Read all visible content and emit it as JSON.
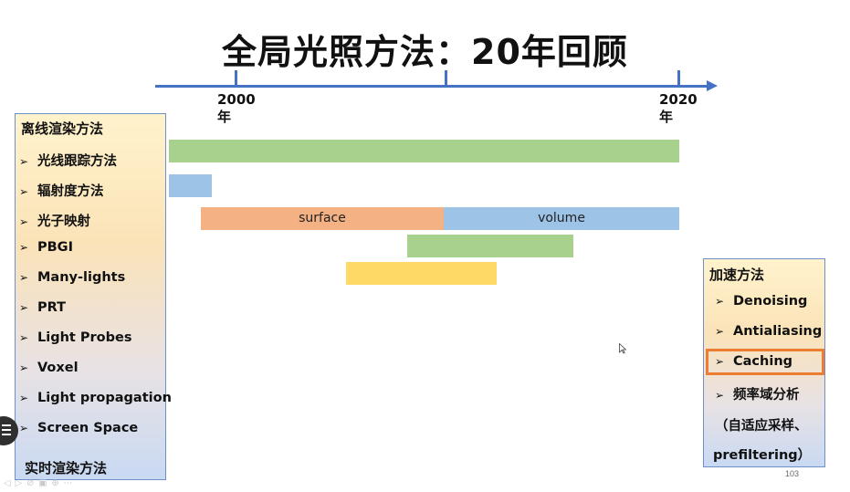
{
  "slide": {
    "title": "全局光照方法：20年回顾",
    "timeline": {
      "start_year": "2000",
      "start_unit": "年",
      "end_year": "2020",
      "end_unit": "年"
    },
    "offline_panel": {
      "title": "离线渲染方法",
      "items": [
        "光线跟踪方法",
        "辐射度方法",
        "光子映射",
        "PBGI",
        "Many-lights",
        "PRT",
        "Light Probes",
        "Voxel",
        "Light propagation",
        "Screen Space"
      ],
      "footer": "实时渲染方法"
    },
    "bars": {
      "surface_label": "surface",
      "volume_label": "volume"
    },
    "accel_panel": {
      "title": "加速方法",
      "items": [
        "Denoising",
        "Antialiasing",
        "Caching",
        "频率域分析"
      ],
      "sub_line1": "（自适应采样、",
      "sub_line2": "prefiltering）",
      "highlighted_item": "Caching"
    },
    "page_number": "103",
    "colors": {
      "axis": "#4472c4",
      "highlight": "#ed7d31",
      "green_bar": "#a9d18e",
      "blue_bar": "#9dc3e6",
      "orange_bar": "#f4b183",
      "yellow_bar": "#ffd966"
    }
  }
}
